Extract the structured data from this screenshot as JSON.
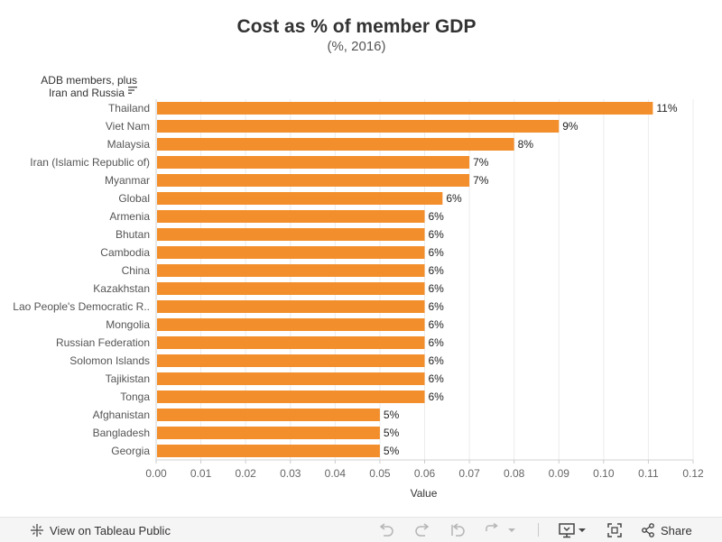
{
  "chart_data": {
    "type": "bar",
    "orientation": "horizontal",
    "title": "Cost as % of member GDP",
    "subtitle": "(%, 2016)",
    "row_header": [
      "ADB members, plus",
      "Iran and Russia"
    ],
    "xlabel": "Value",
    "xlim": [
      0,
      0.12
    ],
    "xticks": [
      "0.00",
      "0.01",
      "0.02",
      "0.03",
      "0.04",
      "0.05",
      "0.06",
      "0.07",
      "0.08",
      "0.09",
      "0.10",
      "0.11",
      "0.12"
    ],
    "grid": true,
    "bar_color": "#f28e2b",
    "categories": [
      "Thailand",
      "Viet Nam",
      "Malaysia",
      "Iran (Islamic Republic of)",
      "Myanmar",
      "Global",
      "Armenia",
      "Bhutan",
      "Cambodia",
      "China",
      "Kazakhstan",
      "Lao People's Democratic R..",
      "Mongolia",
      "Russian Federation",
      "Solomon Islands",
      "Tajikistan",
      "Tonga",
      "Afghanistan",
      "Bangladesh",
      "Georgia"
    ],
    "values": [
      0.111,
      0.09,
      0.08,
      0.07,
      0.07,
      0.064,
      0.06,
      0.06,
      0.06,
      0.06,
      0.06,
      0.06,
      0.06,
      0.06,
      0.06,
      0.06,
      0.06,
      0.05,
      0.05,
      0.05
    ],
    "data_labels": [
      "11%",
      "9%",
      "8%",
      "7%",
      "7%",
      "6%",
      "6%",
      "6%",
      "6%",
      "6%",
      "6%",
      "6%",
      "6%",
      "6%",
      "6%",
      "6%",
      "6%",
      "5%",
      "5%",
      "5%"
    ]
  },
  "footer": {
    "view_label": "View on Tableau Public",
    "share_label": "Share",
    "icons": [
      "tableau-logo-icon",
      "undo-icon",
      "redo-icon",
      "revert-icon",
      "refresh-icon",
      "pause-dropdown-icon",
      "download-icon",
      "fullscreen-icon",
      "share-icon"
    ]
  }
}
